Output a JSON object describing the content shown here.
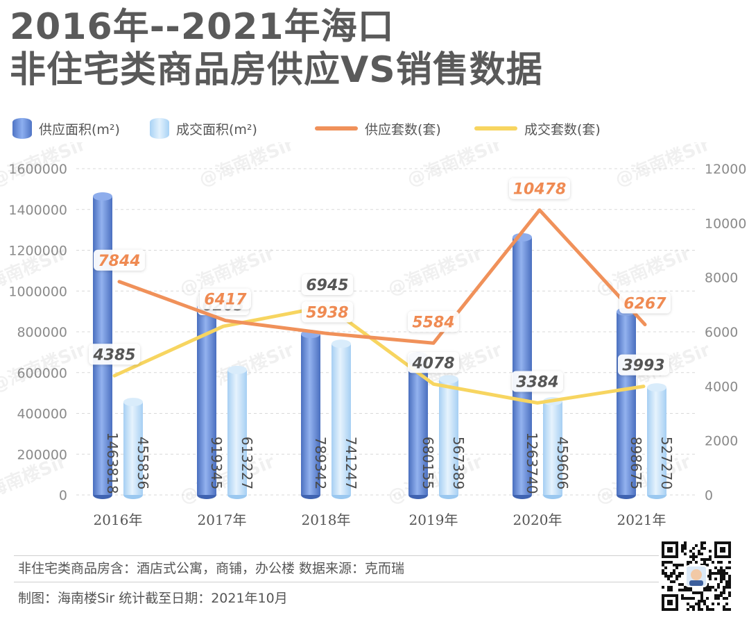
{
  "title": {
    "line1": "2016年--2021年海口",
    "line2": "非住宅类商品房供应VS销售数据"
  },
  "legend": [
    {
      "label": "供应面积(m²)",
      "kind": "bar",
      "color": "#6b8fd6"
    },
    {
      "label": "成交面积(m²)",
      "kind": "bar",
      "color": "#bfe0fa"
    },
    {
      "label": "供应套数(套)",
      "kind": "line",
      "color": "#f0915a"
    },
    {
      "label": "成交套数(套)",
      "kind": "line",
      "color": "#f7d560"
    }
  ],
  "chart_data": {
    "type": "bar",
    "categories": [
      "2016年",
      "2017年",
      "2018年",
      "2019年",
      "2020年",
      "2021年"
    ],
    "series": [
      {
        "name": "供应面积(m²)",
        "type": "bar",
        "axis": "left",
        "color": "#6b8fd6",
        "values": [
          1463818,
          919345,
          789342,
          680155,
          1263740,
          898675
        ]
      },
      {
        "name": "成交面积(m²)",
        "type": "bar",
        "axis": "left",
        "color": "#bfe0fa",
        "values": [
          455836,
          613227,
          741247,
          567389,
          459606,
          527270
        ]
      },
      {
        "name": "供应套数(套)",
        "type": "line",
        "axis": "right",
        "color": "#f0915a",
        "values": [
          7844,
          6417,
          5938,
          5584,
          10478,
          6267
        ]
      },
      {
        "name": "成交套数(套)",
        "type": "line",
        "axis": "right",
        "color": "#f7d560",
        "values": [
          4385,
          6203,
          6945,
          4078,
          3384,
          3993
        ]
      }
    ],
    "y_left": {
      "min": 0,
      "max": 1600000,
      "ticks": [
        0,
        200000,
        400000,
        600000,
        800000,
        1000000,
        1200000,
        1400000,
        1600000
      ]
    },
    "y_right": {
      "min": 0,
      "max": 12000,
      "ticks": [
        0,
        2000,
        4000,
        6000,
        8000,
        10000,
        12000
      ]
    },
    "grid": true,
    "legend_position": "top"
  },
  "watermark": "@海南楼Sir",
  "footer": {
    "note": "非住宅类商品房含：酒店式公寓，商铺，办公楼  数据来源：克而瑞",
    "credit": "制图：海南楼Sir   统计截至日期：2021年10月"
  }
}
